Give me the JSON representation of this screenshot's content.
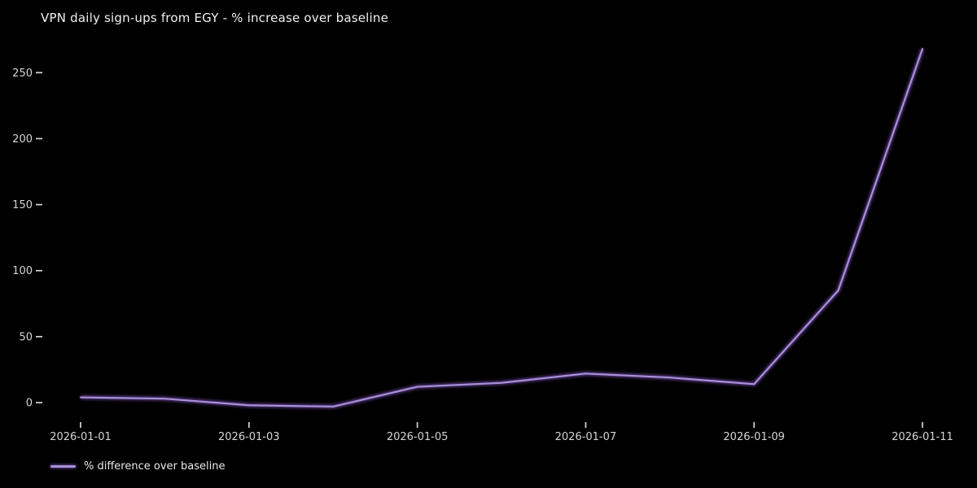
{
  "title": "VPN daily sign-ups from EGY - % increase over baseline",
  "legend": {
    "label": "% difference over baseline",
    "position": "lower-left"
  },
  "colors": {
    "background": "#000000",
    "line": "#a98fd8",
    "line_glow": "#54397e",
    "title_text": "#f1f1f1",
    "tick_text": "#d6d6d6",
    "legend_text": "#e9e9e9"
  },
  "chart_data": {
    "type": "line",
    "title": "VPN daily sign-ups from EGY - % increase over baseline",
    "xlabel": "",
    "ylabel": "",
    "x": [
      "2026-01-01",
      "2026-01-02",
      "2026-01-03",
      "2026-01-04",
      "2026-01-05",
      "2026-01-06",
      "2026-01-07",
      "2026-01-08",
      "2026-01-09",
      "2026-01-10",
      "2026-01-11"
    ],
    "series": [
      {
        "name": "% difference over baseline",
        "values": [
          4,
          3,
          -2,
          -3,
          12,
          15,
          22,
          19,
          14,
          85,
          268
        ]
      }
    ],
    "xtick_labels": [
      "2026-01-01",
      "2026-01-03",
      "2026-01-05",
      "2026-01-07",
      "2026-01-09",
      "2026-01-11"
    ],
    "yticks": [
      0,
      50,
      100,
      150,
      200,
      250
    ],
    "ylim": [
      -16,
      281
    ],
    "grid": false,
    "legend_position": "lower-left"
  }
}
